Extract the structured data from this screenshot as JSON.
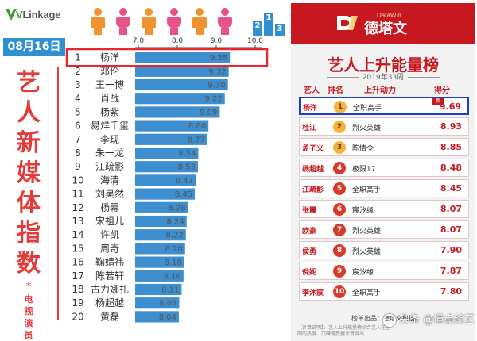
{
  "left_panel": {
    "logo_prefix": "V",
    "logo_rest": "Link",
    "logo_suffix": "age",
    "date": "08月16日",
    "blocks": [
      "2",
      "1",
      "3"
    ],
    "vertical_title_big": [
      "艺",
      "人",
      "新",
      "媒",
      "体",
      "指",
      "数"
    ],
    "vertical_title_star": "*",
    "vertical_title_small": [
      "电",
      "视",
      "演",
      "员"
    ],
    "highlight_color": "#e8262b",
    "bar_color": "#3d8fcf"
  },
  "chart_data": {
    "type": "bar",
    "orientation": "horizontal",
    "ticks": [
      "7.0",
      "8.0",
      "9.0",
      "10.0"
    ],
    "xlim": [
      7.0,
      10.0
    ],
    "ranks": [
      1,
      2,
      3,
      4,
      5,
      6,
      7,
      8,
      9,
      10,
      11,
      12,
      13,
      14,
      15,
      16,
      17,
      18,
      19,
      20
    ],
    "categories": [
      "杨洋",
      "邓伦",
      "王一博",
      "肖战",
      "杨紫",
      "易烊千玺",
      "李现",
      "朱一龙",
      "江疏影",
      "海清",
      "刘昊然",
      "杨幂",
      "宋祖儿",
      "许凯",
      "周奇",
      "鞠婧祎",
      "陈若轩",
      "古力娜扎",
      "杨超越",
      "黄磊"
    ],
    "values": [
      9.35,
      9.32,
      9.3,
      9.22,
      9.09,
      8.8,
      8.77,
      8.54,
      8.53,
      8.47,
      8.45,
      8.28,
      8.24,
      8.22,
      8.2,
      8.18,
      8.16,
      8.11,
      8.05,
      8.04
    ],
    "value_labels": [
      "9.35",
      "9.32",
      "9.30",
      "9.22",
      "9.09",
      "8.80",
      "8.77",
      "8.54",
      "8.53",
      "8.47",
      "8.45",
      "8.28",
      "8.24",
      "8.22",
      "8.20",
      "8.18",
      "8.16",
      "8.11",
      "8.05",
      "8.04"
    ],
    "highlighted_rank": 1
  },
  "right_panel": {
    "brand_latin": "DataWin",
    "brand_name": "德塔文",
    "title": "艺人上升能量榜",
    "subtitle": "2019年33周",
    "headers": {
      "artist": "艺人",
      "rank": "排名",
      "momentum": "上升动力",
      "score": "得分"
    },
    "rows": [
      {
        "name": "杨洋",
        "rank": "1",
        "momentum": "全职高手",
        "score": "9.69",
        "badge": "新"
      },
      {
        "name": "杜江",
        "rank": "2",
        "momentum": "烈火英雄",
        "score": "8.93"
      },
      {
        "name": "孟子义",
        "rank": "3",
        "momentum": "陈情令",
        "score": "8.85"
      },
      {
        "name": "杨超越",
        "rank": "4",
        "momentum": "极限17",
        "score": "8.48"
      },
      {
        "name": "江疏影",
        "rank": "5",
        "momentum": "全职高手",
        "score": "8.45"
      },
      {
        "name": "张震",
        "rank": "6",
        "momentum": "宸汐缘",
        "score": "8.07"
      },
      {
        "name": "欧豪",
        "rank": "7",
        "momentum": "烈火英雄",
        "score": "8.07"
      },
      {
        "name": "侯勇",
        "rank": "8",
        "momentum": "烈火英雄",
        "score": "7.90"
      },
      {
        "name": "倪妮",
        "rank": "9",
        "momentum": "宸汐缘",
        "score": "7.87"
      },
      {
        "name": "李沐宸",
        "rank": "10",
        "momentum": "全职高手",
        "score": "7.80"
      }
    ],
    "highlight_color": "#1b3fd6",
    "footer_source": "榜单出品：德塔文科技",
    "footer_note": "【计算说明】：艺人上升能量榜综合艺人在全网的热度、口碑等数据计算得出",
    "watermark": "头条 @懂点综艺"
  }
}
